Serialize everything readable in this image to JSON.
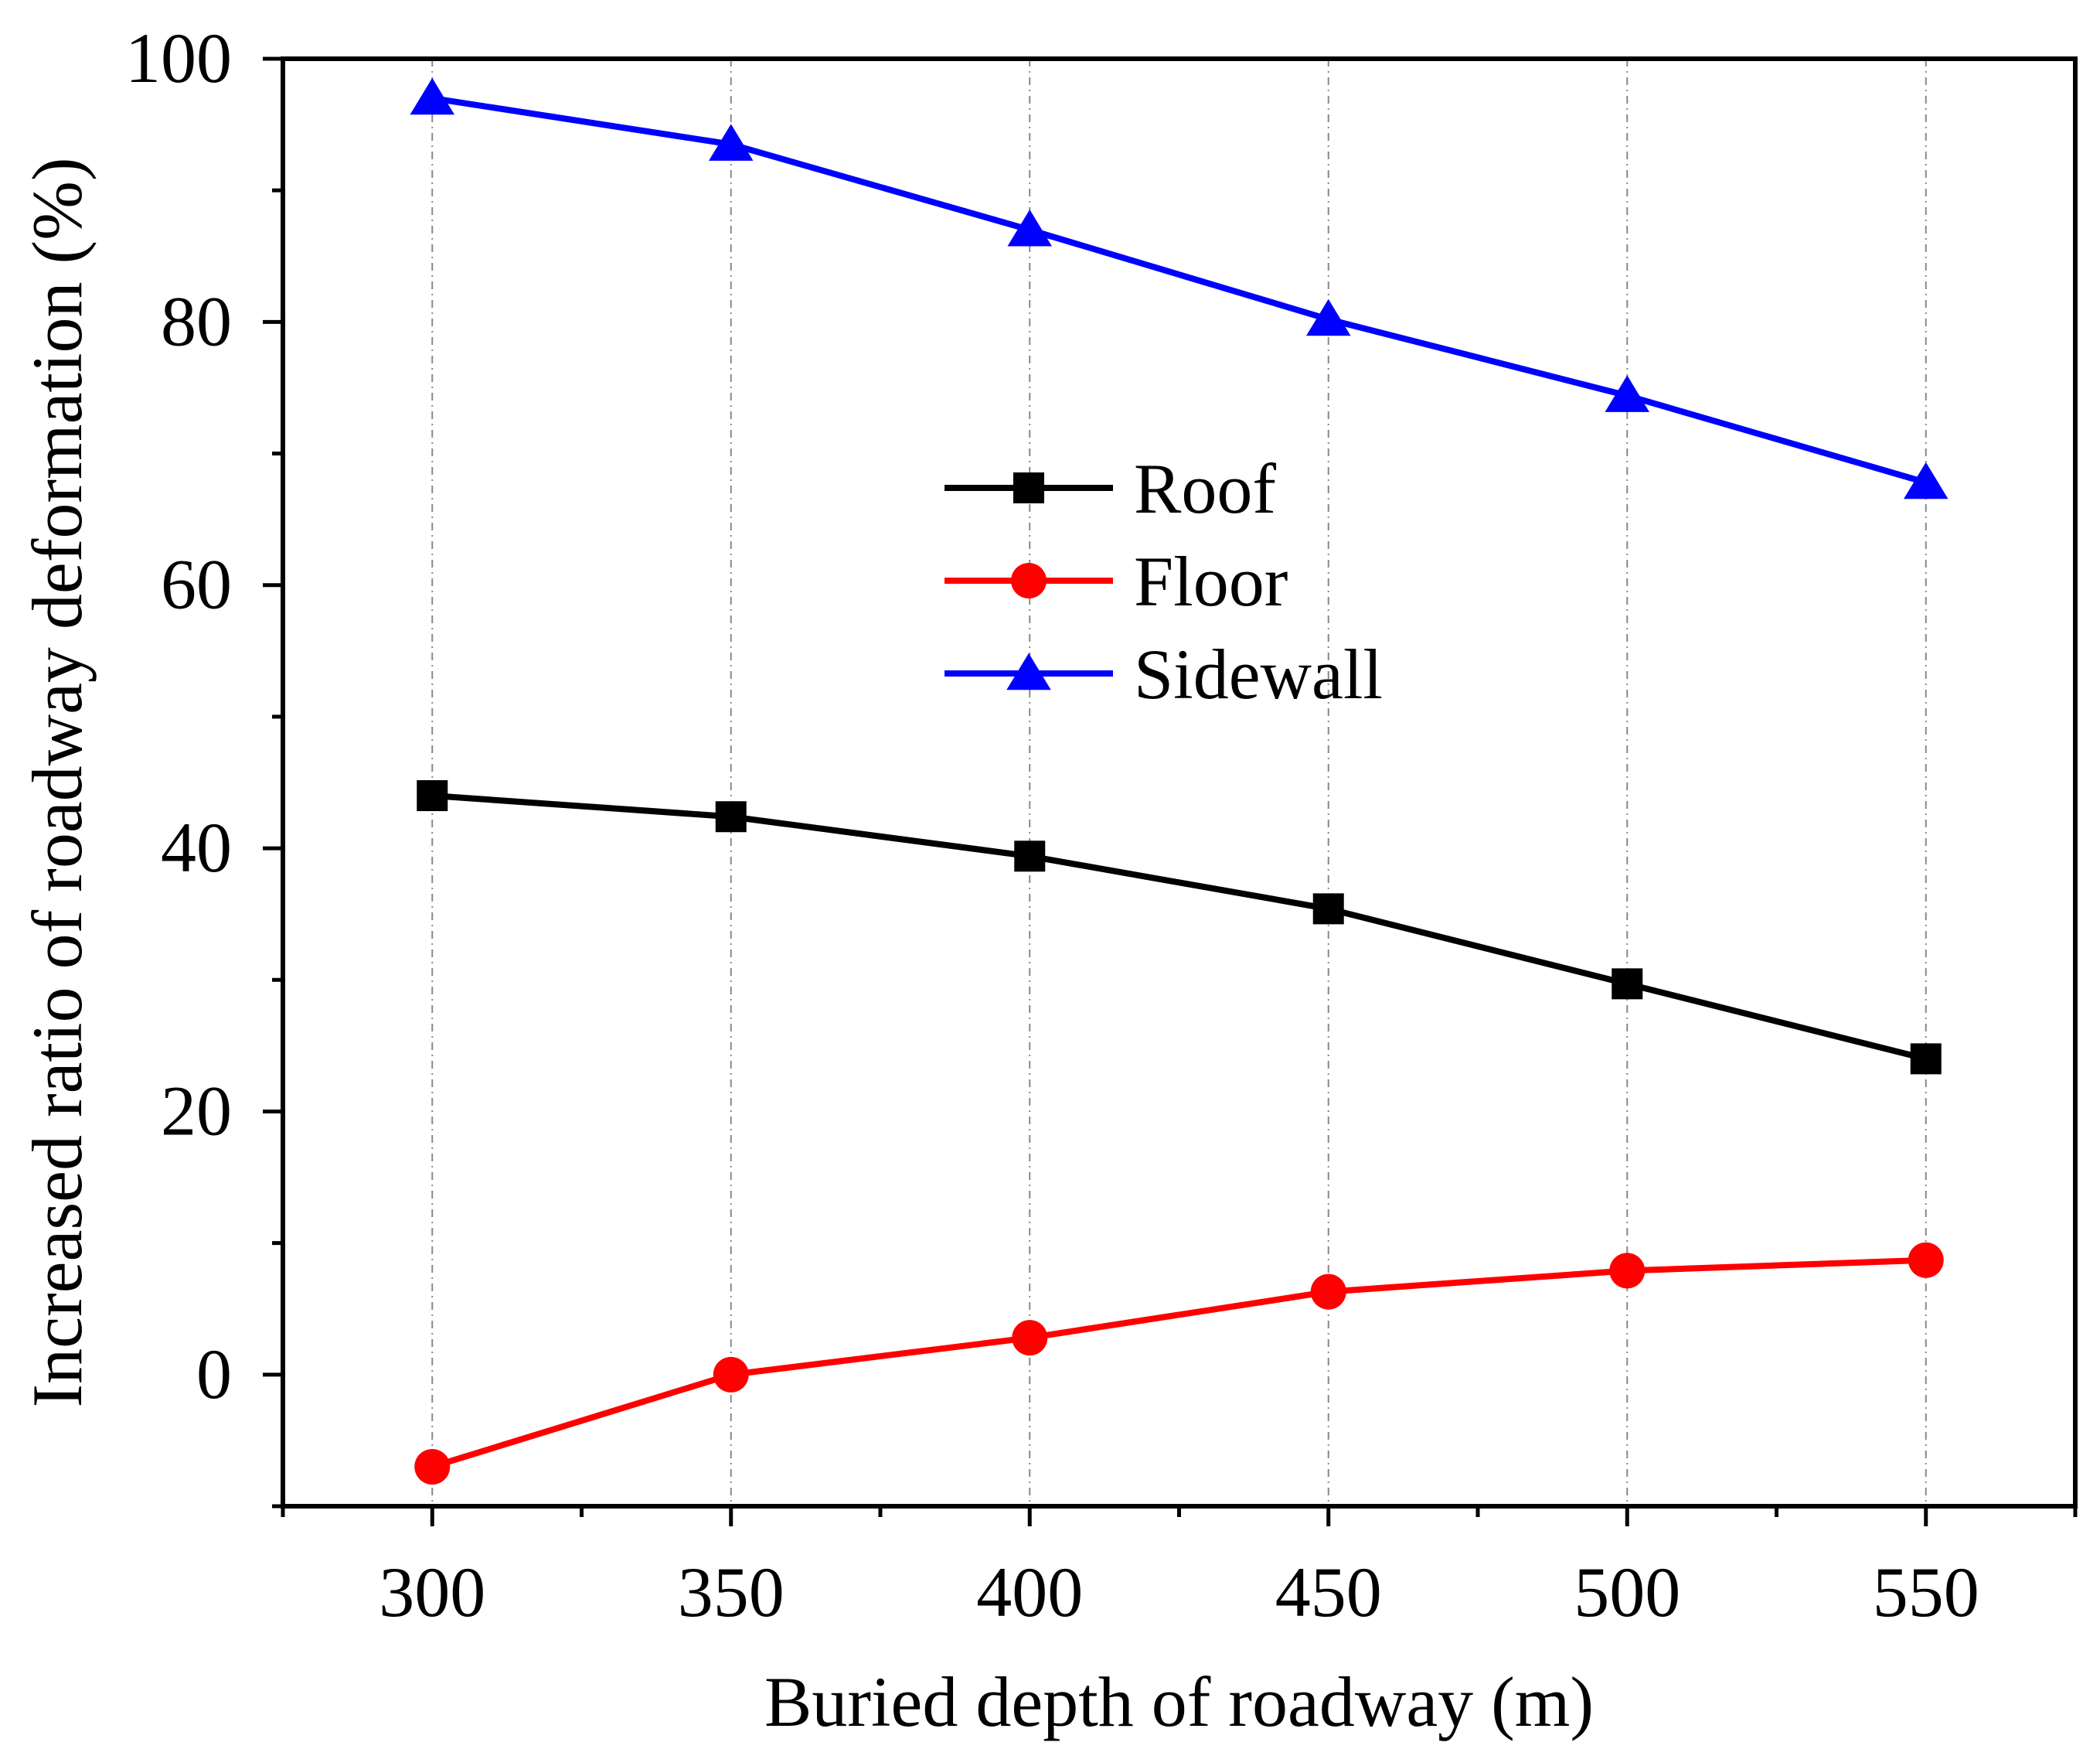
{
  "chart_data": {
    "type": "line",
    "title": "",
    "xlabel": "Buried depth of roadway (m)",
    "ylabel": "Increased ratio of roadway deformation (%)",
    "x": [
      300,
      350,
      400,
      450,
      500,
      550
    ],
    "xlim": [
      275,
      575
    ],
    "ylim": [
      -10,
      100
    ],
    "xticks": [
      300,
      350,
      400,
      450,
      500,
      550
    ],
    "yticks": [
      0,
      20,
      40,
      60,
      80,
      100
    ],
    "x_minor_step": 25,
    "y_minor_step": 10,
    "grid": "vertical dashed at x ticks",
    "legend_position": "center",
    "series": [
      {
        "name": "Roof",
        "color": "#000000",
        "marker": "square",
        "values": [
          44.0,
          42.4,
          39.4,
          35.4,
          29.7,
          24.0
        ]
      },
      {
        "name": "Floor",
        "color": "#ff0000",
        "marker": "circle",
        "values": [
          -7.0,
          0.0,
          2.8,
          6.3,
          7.9,
          8.7
        ]
      },
      {
        "name": "Sidewall",
        "color": "#0000ff",
        "marker": "triangle",
        "values": [
          97.0,
          93.5,
          87.0,
          80.2,
          74.4,
          67.8
        ]
      }
    ]
  }
}
